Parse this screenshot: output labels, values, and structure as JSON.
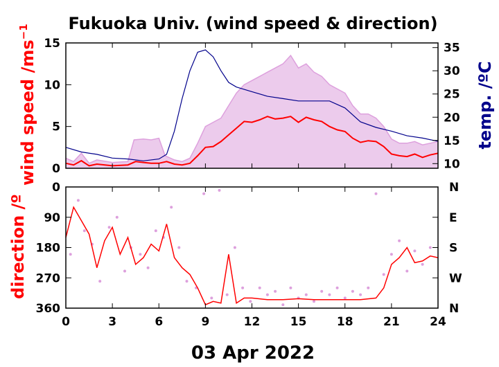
{
  "chart_data": [
    {
      "type": "line",
      "panel": "top",
      "title": "Fukuoka Univ. (wind speed & direction)",
      "ylabel": "wind speed /ms",
      "ylabel_sup": "−1",
      "y2label": "temp. /ºC",
      "xlim": [
        0,
        24
      ],
      "ylim": [
        0,
        15
      ],
      "y2lim": [
        9,
        36
      ],
      "x_ticks": [
        "0",
        "3",
        "6",
        "9",
        "12",
        "15",
        "18",
        "21",
        "24"
      ],
      "y_ticks": [
        0,
        5,
        10,
        15
      ],
      "y2_ticks": [
        10,
        15,
        20,
        25,
        30,
        35
      ],
      "grid": false,
      "colors": {
        "mean_speed": "#ff0000",
        "gust": "#dda0dd",
        "temperature": "#00008b",
        "label_left": "#ff0000",
        "label_right": "#00008b"
      },
      "series": [
        {
          "key": "mean_speed",
          "x": [
            0,
            0.5,
            1,
            1.5,
            2,
            3,
            4,
            4.5,
            5,
            5.5,
            6,
            6.5,
            7,
            7.5,
            8,
            8.5,
            9,
            9.5,
            10,
            10.5,
            11,
            11.5,
            12,
            12.5,
            13,
            13.5,
            14,
            14.5,
            15,
            15.5,
            16,
            16.5,
            17,
            17.5,
            18,
            18.5,
            19,
            19.5,
            20,
            20.5,
            21,
            21.5,
            22,
            22.5,
            23,
            23.5,
            24
          ],
          "values": [
            0.6,
            0.4,
            0.9,
            0.3,
            0.5,
            0.3,
            0.4,
            0.8,
            0.7,
            0.6,
            0.6,
            0.8,
            0.5,
            0.4,
            0.6,
            1.5,
            2.5,
            2.6,
            3.2,
            4.0,
            4.8,
            5.6,
            5.5,
            5.8,
            6.2,
            5.9,
            6.0,
            6.2,
            5.5,
            6.1,
            5.8,
            5.6,
            5.0,
            4.6,
            4.4,
            3.6,
            3.1,
            3.3,
            3.2,
            2.6,
            1.7,
            1.5,
            1.4,
            1.7,
            1.3,
            1.6,
            1.8
          ]
        },
        {
          "key": "gust",
          "x": [
            0,
            0.5,
            1,
            1.5,
            2,
            3,
            4,
            4.4,
            5,
            5.5,
            6,
            6.4,
            7,
            7.5,
            8,
            8.5,
            9,
            9.5,
            10,
            10.5,
            11,
            11.5,
            12,
            12.5,
            13,
            13.5,
            14,
            14.5,
            15,
            15.5,
            16,
            16.5,
            17,
            17.5,
            18,
            18.5,
            19,
            19.5,
            20,
            20.5,
            21,
            21.5,
            22,
            22.5,
            23,
            23.5,
            24
          ],
          "values": [
            1.2,
            0.8,
            1.8,
            0.6,
            1.0,
            0.7,
            0.8,
            3.4,
            3.5,
            3.4,
            3.6,
            1.5,
            1.0,
            0.8,
            1.2,
            3.0,
            5.0,
            5.5,
            6.0,
            7.5,
            9.0,
            10.0,
            10.5,
            11.0,
            11.5,
            12.0,
            12.5,
            13.5,
            12.0,
            12.5,
            11.5,
            11.0,
            10.0,
            9.5,
            9.0,
            7.5,
            6.5,
            6.5,
            6.0,
            5.0,
            3.5,
            3.0,
            3.0,
            3.2,
            2.8,
            3.0,
            3.2
          ]
        },
        {
          "key": "temperature",
          "x": [
            0,
            1,
            2,
            3,
            4,
            5,
            6,
            6.5,
            7,
            7.5,
            8,
            8.5,
            9,
            9.5,
            10,
            10.5,
            11,
            12,
            13,
            14,
            15,
            16,
            17,
            18,
            19,
            20,
            21,
            22,
            23,
            24
          ],
          "values": [
            13.5,
            12.5,
            12.0,
            11.2,
            11.0,
            10.6,
            11.0,
            12.0,
            17.0,
            24.0,
            30.0,
            34.0,
            34.5,
            33.0,
            30.0,
            27.5,
            26.5,
            25.5,
            24.5,
            24.0,
            23.5,
            23.5,
            23.5,
            22.0,
            19.0,
            17.8,
            17.0,
            16.0,
            15.5,
            14.8
          ]
        }
      ]
    },
    {
      "type": "scatter",
      "panel": "bottom",
      "ylabel": "direction /º",
      "xlabel": "03 Apr 2022",
      "xlim": [
        0,
        24
      ],
      "ylim": [
        0,
        360
      ],
      "y_inverted": true,
      "x_ticks": [
        "0",
        "3",
        "6",
        "9",
        "12",
        "15",
        "18",
        "21",
        "24"
      ],
      "y_ticks": [
        "0",
        "90",
        "180",
        "270",
        "360"
      ],
      "y2_ticks": [
        "N",
        "E",
        "S",
        "W",
        "N"
      ],
      "grid": false,
      "colors": {
        "mean_direction": "#ff0000",
        "instantaneous_direction": "#dda0dd"
      },
      "series": [
        {
          "key": "mean_direction",
          "x": [
            0,
            0.5,
            1,
            1.5,
            2,
            2.5,
            3,
            3.5,
            4,
            4.5,
            5,
            5.5,
            6,
            6.5,
            7,
            7.5,
            8,
            8.5,
            9,
            9.5,
            10,
            10.5,
            11,
            11.5,
            12,
            13,
            14,
            15,
            16,
            17,
            18,
            19,
            20,
            20.5,
            21,
            21.5,
            22,
            22.5,
            23,
            23.5,
            24
          ],
          "values": [
            150,
            60,
            100,
            140,
            240,
            160,
            120,
            200,
            150,
            230,
            210,
            170,
            190,
            110,
            210,
            240,
            260,
            300,
            350,
            340,
            345,
            200,
            345,
            330,
            330,
            335,
            335,
            332,
            335,
            335,
            335,
            335,
            330,
            300,
            230,
            210,
            180,
            225,
            220,
            205,
            210
          ]
        },
        {
          "key": "instantaneous_direction",
          "x": [
            0.3,
            0.8,
            1.2,
            1.7,
            2.2,
            2.8,
            3.3,
            3.8,
            4.2,
            4.8,
            5.3,
            5.8,
            6.3,
            6.8,
            7.3,
            7.8,
            8.4,
            8.9,
            9.4,
            9.9,
            10.4,
            10.9,
            11.4,
            11.9,
            12.5,
            13.0,
            13.5,
            14.0,
            14.5,
            15.0,
            15.5,
            16.0,
            16.5,
            17.0,
            17.5,
            18.0,
            18.5,
            19.0,
            19.5,
            20.0,
            20.5,
            21.0,
            21.5,
            22.0,
            22.5,
            23.0,
            23.5
          ],
          "values": [
            200,
            40,
            130,
            170,
            280,
            120,
            90,
            250,
            180,
            200,
            240,
            130,
            150,
            60,
            180,
            280,
            300,
            20,
            330,
            10,
            320,
            180,
            300,
            340,
            300,
            320,
            310,
            350,
            300,
            330,
            320,
            340,
            310,
            320,
            300,
            330,
            310,
            320,
            300,
            20,
            260,
            200,
            160,
            250,
            190,
            230,
            180
          ]
        }
      ]
    }
  ]
}
